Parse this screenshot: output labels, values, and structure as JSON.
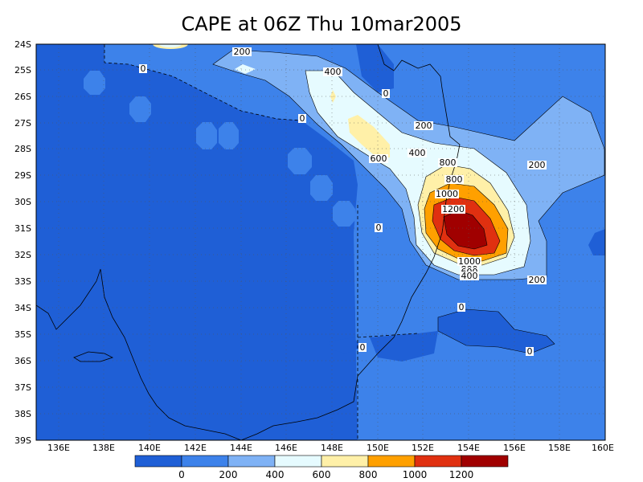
{
  "title": "CAPE at 06Z Thu 10mar2005",
  "map": {
    "lon_ticks": [
      "136E",
      "138E",
      "140E",
      "142E",
      "144E",
      "146E",
      "148E",
      "150E",
      "152E",
      "154E",
      "156E",
      "158E",
      "160E"
    ],
    "lat_ticks": [
      "24S",
      "25S",
      "26S",
      "27S",
      "28S",
      "29S",
      "30S",
      "31S",
      "32S",
      "33S",
      "34S",
      "35S",
      "36S",
      "37S",
      "38S",
      "39S"
    ],
    "contour_labels": [
      "200",
      "0",
      "400",
      "0",
      "0",
      "200",
      "600",
      "400",
      "200",
      "800",
      "800",
      "1000",
      "1200",
      "0",
      "1000",
      "800",
      "600",
      "400",
      "200",
      "0",
      "0",
      "0"
    ]
  },
  "colorbar": {
    "colors": [
      "#1f5fd6",
      "#3d82ea",
      "#7fb2f5",
      "#e6fbff",
      "#fff0a8",
      "#ffa000",
      "#e03010",
      "#a00000"
    ],
    "labels": [
      "0",
      "200",
      "400",
      "600",
      "800",
      "1000",
      "1200"
    ]
  }
}
